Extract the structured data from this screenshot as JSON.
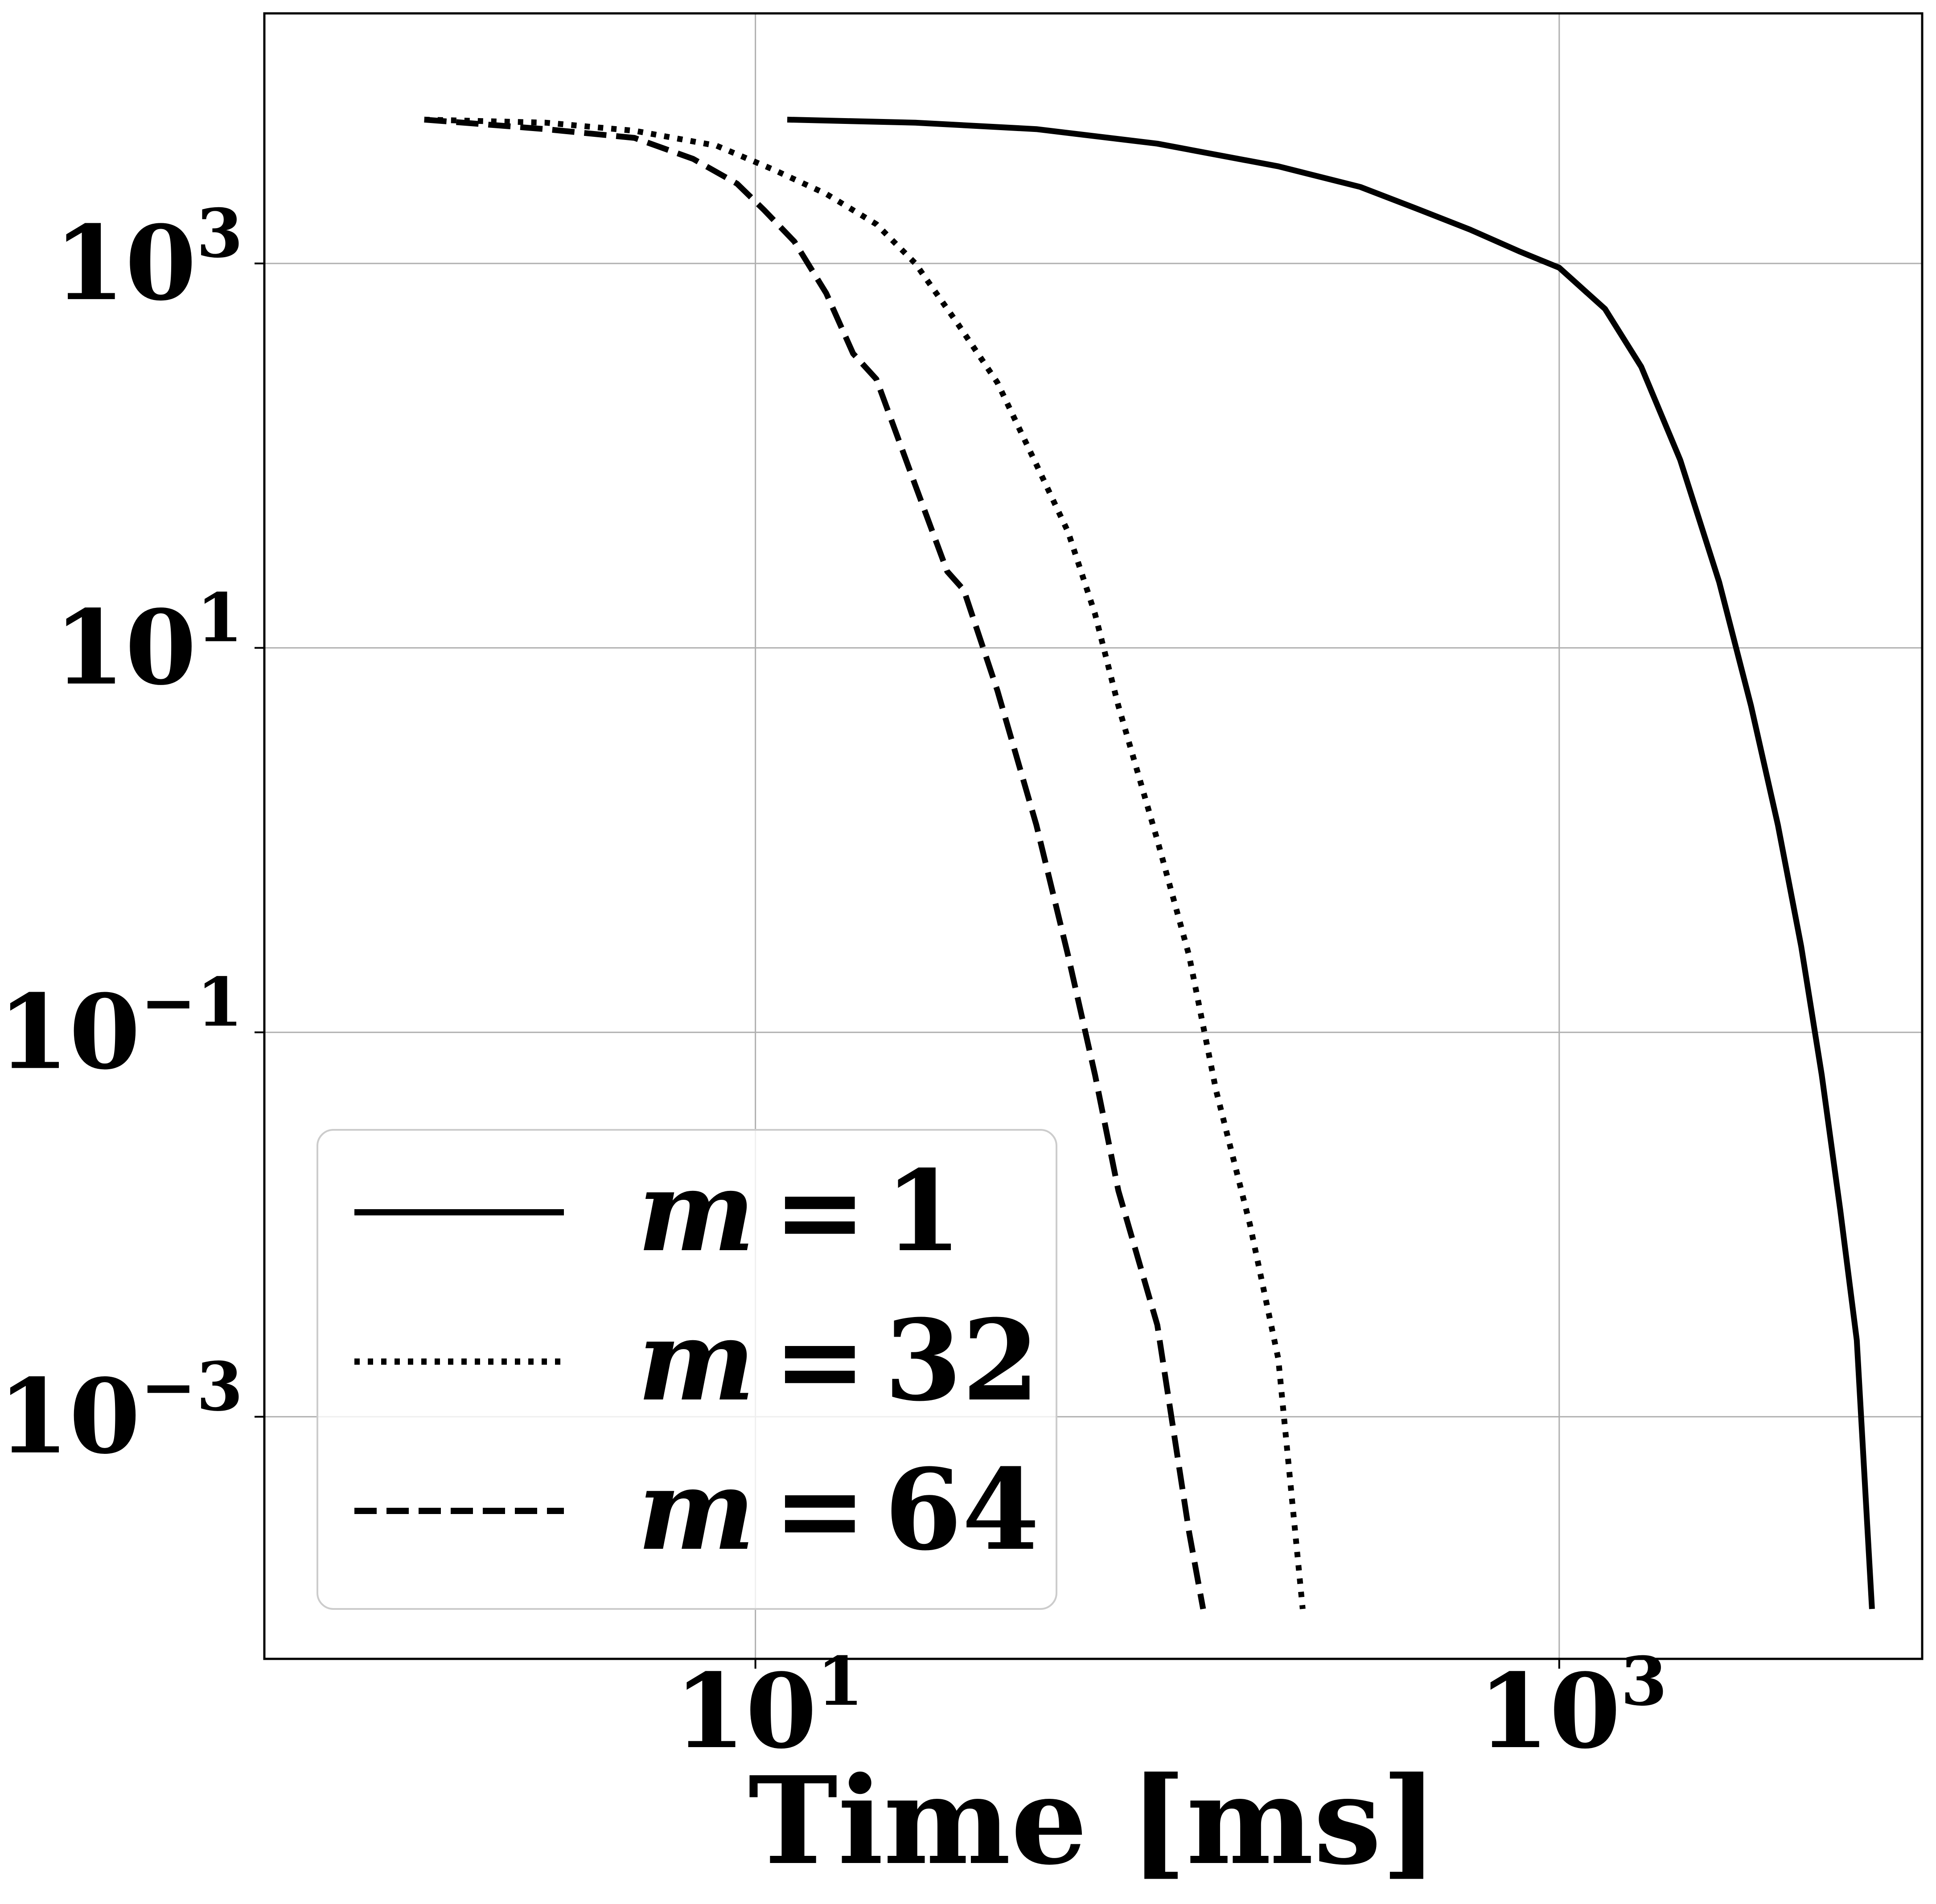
{
  "chart_data": {
    "type": "line",
    "title": "",
    "xlabel": "Time [ms]",
    "ylabel": "",
    "xscale": "log",
    "yscale": "log",
    "xlim": [
      0.6,
      8000
    ],
    "ylim": [
      5.5e-05,
      20000
    ],
    "grid": true,
    "legend_position": "lower-left",
    "x_ticks": [
      {
        "value": 10,
        "base": "10",
        "exp": "1"
      },
      {
        "value": 1000,
        "base": "10",
        "exp": "3"
      }
    ],
    "y_ticks": [
      {
        "value": 1000,
        "base": "10",
        "exp": "3"
      },
      {
        "value": 10,
        "base": "10",
        "exp": "1"
      },
      {
        "value": 0.1,
        "base": "10",
        "exp": "−1"
      },
      {
        "value": 0.001,
        "base": "10",
        "exp": "−3"
      }
    ],
    "series": [
      {
        "name": "m = 1",
        "label_var": "m",
        "label_eq": "=",
        "label_val": "1",
        "style": "solid",
        "x": [
          12,
          25,
          50,
          100,
          200,
          320,
          450,
          600,
          800,
          1000,
          1300,
          1600,
          2000,
          2500,
          3000,
          3500,
          4000,
          4500,
          5000,
          5500,
          6000
        ],
        "y": [
          5600,
          5400,
          5000,
          4200,
          3200,
          2500,
          1900,
          1500,
          1150,
          950,
          580,
          290,
          95,
          22,
          5,
          1.2,
          0.28,
          0.06,
          0.012,
          0.0025,
          0.0001
        ]
      },
      {
        "name": "m = 32",
        "label_var": "m",
        "label_eq": "=",
        "label_val": "32",
        "style": "dotted",
        "x": [
          1.5,
          3,
          5,
          8,
          11,
          15,
          20,
          25,
          32,
          40,
          50,
          60,
          70,
          80,
          100,
          120,
          140,
          170,
          200,
          230
        ],
        "y": [
          5600,
          5400,
          4900,
          4100,
          3100,
          2300,
          1600,
          1000,
          480,
          240,
          90,
          40,
          15,
          5,
          1,
          0.25,
          0.05,
          0.01,
          0.002,
          0.0001
        ]
      },
      {
        "name": "m = 64",
        "label_var": "m",
        "label_eq": "=",
        "label_val": "64",
        "style": "dashed",
        "x": [
          1.5,
          3,
          5,
          7,
          9,
          10.5,
          12.5,
          15,
          17.5,
          20,
          25,
          30,
          33,
          40,
          50,
          60,
          70,
          80,
          100,
          120,
          130
        ],
        "y": [
          5600,
          5000,
          4500,
          3500,
          2600,
          1900,
          1300,
          700,
          340,
          250,
          70,
          25,
          20,
          6,
          1.2,
          0.25,
          0.06,
          0.015,
          0.003,
          0.00025,
          0.0001
        ]
      }
    ]
  }
}
